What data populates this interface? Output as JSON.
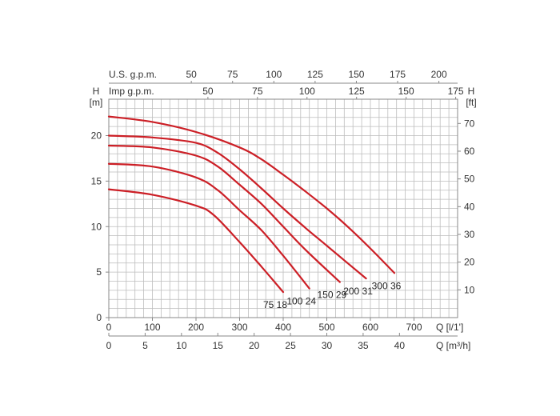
{
  "chart_data": {
    "type": "line",
    "title": "",
    "colors": {
      "curve": "#cc1f26",
      "grid": "#bdbdbd",
      "axis": "#888888",
      "text": "#333333"
    },
    "grid": true,
    "x_axis_bottom_primary": {
      "label": "Q [l/1']",
      "range": [
        0,
        800
      ],
      "ticks": [
        0,
        100,
        200,
        300,
        400,
        500,
        600,
        700
      ]
    },
    "x_axis_bottom_secondary": {
      "label": "Q [m³/h]",
      "ticks": [
        0,
        5,
        10,
        15,
        20,
        25,
        30,
        35,
        40
      ]
    },
    "x_axis_top_us": {
      "label": "U.S. g.p.m.",
      "ticks": [
        50,
        75,
        100,
        125,
        150,
        175,
        200
      ]
    },
    "x_axis_top_imp": {
      "label": "Imp g.p.m.",
      "ticks": [
        50,
        75,
        100,
        125,
        150,
        175
      ]
    },
    "y_axis_left": {
      "label_top": "H",
      "unit": "[m]",
      "range": [
        0,
        24
      ],
      "ticks": [
        0,
        5,
        10,
        15,
        20
      ]
    },
    "y_axis_right": {
      "label_top": "H",
      "unit": "[ft]",
      "ticks": [
        10,
        20,
        30,
        40,
        50,
        60,
        70
      ]
    },
    "series": [
      {
        "name": "75 18",
        "x": [
          0,
          100,
          200,
          240,
          300,
          350,
          400
        ],
        "y": [
          14.1,
          13.5,
          12.3,
          11.3,
          8.3,
          5.6,
          2.8
        ]
      },
      {
        "name": "100 24",
        "x": [
          0,
          100,
          200,
          250,
          300,
          350,
          400,
          460
        ],
        "y": [
          16.9,
          16.6,
          15.4,
          14.0,
          11.8,
          9.6,
          6.8,
          3.2
        ]
      },
      {
        "name": "150 29",
        "x": [
          0,
          100,
          200,
          250,
          300,
          350,
          400,
          450,
          530
        ],
        "y": [
          18.9,
          18.7,
          17.8,
          16.6,
          14.6,
          12.5,
          10.0,
          7.5,
          3.9
        ]
      },
      {
        "name": "200 31",
        "x": [
          0,
          100,
          200,
          250,
          300,
          350,
          400,
          450,
          500,
          590
        ],
        "y": [
          20.0,
          19.8,
          19.2,
          18.1,
          16.3,
          14.2,
          12.0,
          9.9,
          7.9,
          4.3
        ]
      },
      {
        "name": "300 36",
        "x": [
          0,
          100,
          200,
          300,
          350,
          400,
          450,
          500,
          550,
          600,
          655
        ],
        "y": [
          22.1,
          21.5,
          20.4,
          18.7,
          17.4,
          15.7,
          13.9,
          12.0,
          9.9,
          7.6,
          4.9
        ]
      }
    ]
  }
}
